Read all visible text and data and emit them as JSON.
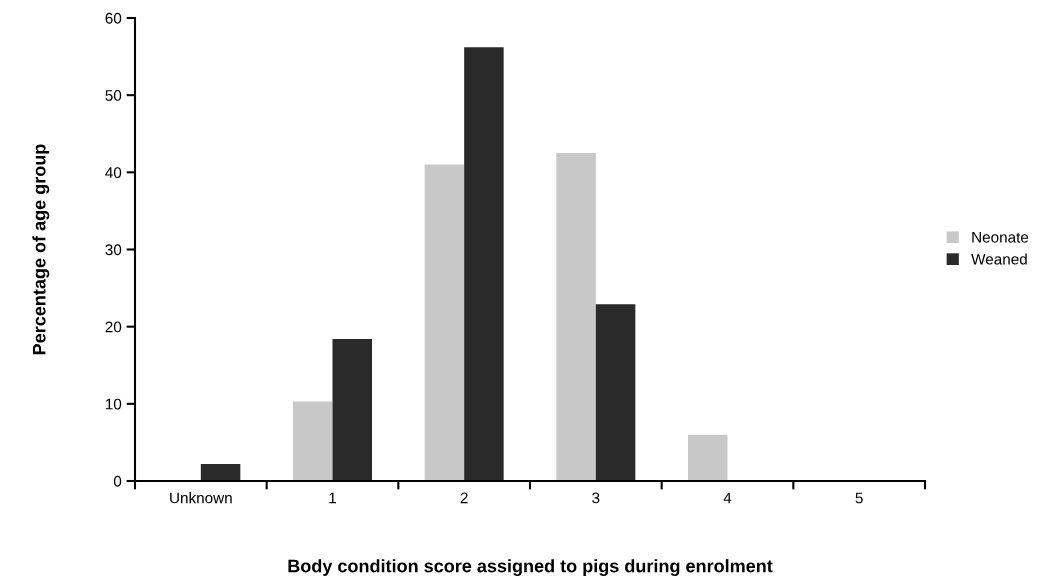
{
  "chart_data": {
    "type": "bar",
    "xlabel": "Body condition score assigned to pigs during enrolment",
    "ylabel": "Percentage of age group",
    "categories": [
      "Unknown",
      "1",
      "2",
      "3",
      "4",
      "5"
    ],
    "series": [
      {
        "name": "Neonate",
        "color": "#c8c8c8",
        "values": [
          0,
          10.3,
          41,
          42.5,
          6,
          0
        ]
      },
      {
        "name": "Weaned",
        "color": "#2a2a2a",
        "values": [
          2.2,
          18.4,
          56.2,
          22.9,
          0,
          0
        ]
      }
    ],
    "ylim": [
      0,
      60
    ],
    "yticks": [
      0,
      10,
      20,
      30,
      40,
      50,
      60
    ],
    "grid": false,
    "legend": "right"
  }
}
